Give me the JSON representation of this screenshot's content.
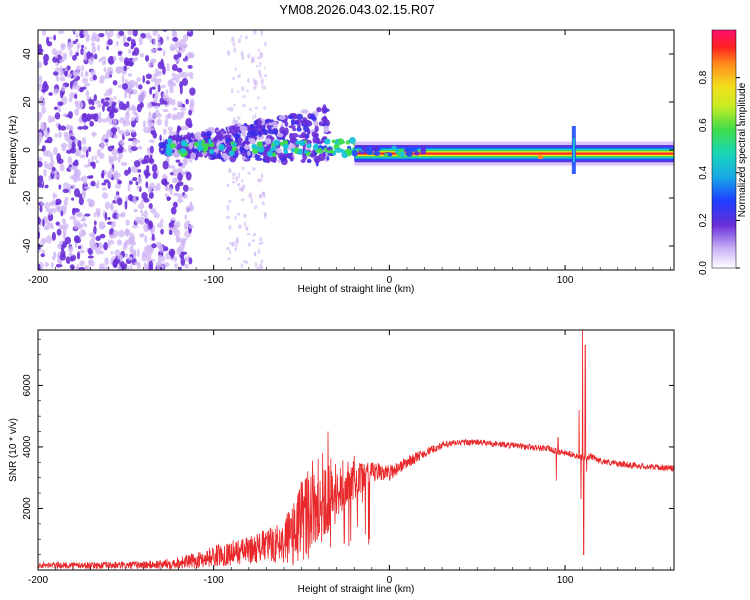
{
  "title": "YM08.2026.043.02.15.R07",
  "colors": {
    "snr_line": "#e8282a",
    "spectrogram_band": [
      "#5b2be0",
      "#1f4cff",
      "#19c3d8",
      "#3ddc4a",
      "#f2e01c",
      "#ff8a1c",
      "#ff2020"
    ],
    "scatter_light": "#cfb6f4",
    "scatter_dark": "#6a2fd8"
  },
  "chart_data": [
    {
      "type": "heatmap",
      "title": "YM08.2026.043.02.15.R07",
      "xlabel": "Height of straight line (km)",
      "ylabel": "Frequency (Hz)",
      "xlim": [
        -200,
        162
      ],
      "ylim": [
        -50,
        50
      ],
      "x_ticks": [
        -200,
        -100,
        0,
        100
      ],
      "y_ticks": [
        -40,
        -20,
        0,
        20,
        40
      ],
      "colorbar": {
        "label": "Normalized spectral amplitude",
        "range": [
          0,
          1
        ],
        "ticks": [
          0.0,
          0.2,
          0.4,
          0.6,
          0.8
        ],
        "tick_labels": [
          "0.0",
          "0.2",
          "0.4",
          "0.6",
          "0.8"
        ]
      },
      "features": [
        {
          "name": "diffuse scatter (noise)",
          "x_range": [
            -200,
            -113
          ],
          "y_range": [
            -50,
            50
          ],
          "amplitude": "0.05-0.2"
        },
        {
          "name": "sparse scatter streaks",
          "x_range": [
            -90,
            -70
          ],
          "y_range": [
            -50,
            50
          ],
          "amplitude": "0.05-0.1"
        },
        {
          "name": "broadening band",
          "x_range": [
            -130,
            -35
          ],
          "y_range": [
            -8,
            16
          ],
          "amplitude": "0.1-0.4"
        },
        {
          "name": "bright ridge near 0 Hz",
          "x_range": [
            -20,
            162
          ],
          "center_hz": -1.5,
          "amplitude": "0.8-1.0"
        },
        {
          "name": "spike feature",
          "x": 105,
          "y_range": [
            -10,
            10
          ],
          "amplitude": "0.2-0.4"
        }
      ]
    },
    {
      "type": "line",
      "xlabel": "Height of straight line (km)",
      "ylabel": "SNR (10 * v/v)",
      "xlim": [
        -200,
        162
      ],
      "ylim": [
        0,
        7800
      ],
      "x_ticks": [
        -200,
        -100,
        0,
        100
      ],
      "y_ticks": [
        2000,
        4000,
        6000
      ],
      "series": [
        {
          "name": "SNR",
          "envelope_x": [
            -200,
            -150,
            -130,
            -110,
            -100,
            -90,
            -80,
            -70,
            -60,
            -55,
            -50,
            -45,
            -40,
            -35,
            -30,
            -25,
            -20,
            -15,
            -10,
            -5,
            0,
            10,
            20,
            30,
            40,
            50,
            60,
            70,
            80,
            90,
            95,
            100,
            105,
            110,
            112,
            114,
            116,
            120,
            130,
            140,
            150,
            162
          ],
          "envelope_y": [
            150,
            150,
            180,
            300,
            450,
            550,
            650,
            800,
            900,
            1200,
            1600,
            2000,
            2200,
            2400,
            2600,
            2800,
            2900,
            3000,
            3100,
            3200,
            3150,
            3500,
            3800,
            4050,
            4150,
            4150,
            4100,
            4050,
            4000,
            3950,
            3850,
            3800,
            3750,
            3650,
            3600,
            3700,
            3650,
            3550,
            3450,
            3400,
            3350,
            3300
          ],
          "noise_y": [
            100,
            120,
            150,
            250,
            350,
            400,
            450,
            550,
            700,
            1100,
            1400,
            1600,
            1500,
            1400,
            1100,
            800,
            600,
            500,
            400,
            300,
            250,
            200,
            150,
            120,
            100,
            100,
            100,
            100,
            100,
            100,
            100,
            100,
            100,
            100,
            100,
            100,
            100,
            100,
            100,
            100,
            100,
            100
          ],
          "spikes": [
            {
              "x": 108,
              "y": 5200
            },
            {
              "x": 109,
              "y": 2300
            },
            {
              "x": 110,
              "y": 7800
            },
            {
              "x": 110.6,
              "y": 500
            },
            {
              "x": 111.5,
              "y": 7300
            },
            {
              "x": 112.3,
              "y": 3200
            },
            {
              "x": 95,
              "y": 2900
            },
            {
              "x": 96,
              "y": 4300
            },
            {
              "x": -35,
              "y": 4500
            },
            {
              "x": -38,
              "y": 3800
            }
          ]
        }
      ]
    }
  ]
}
